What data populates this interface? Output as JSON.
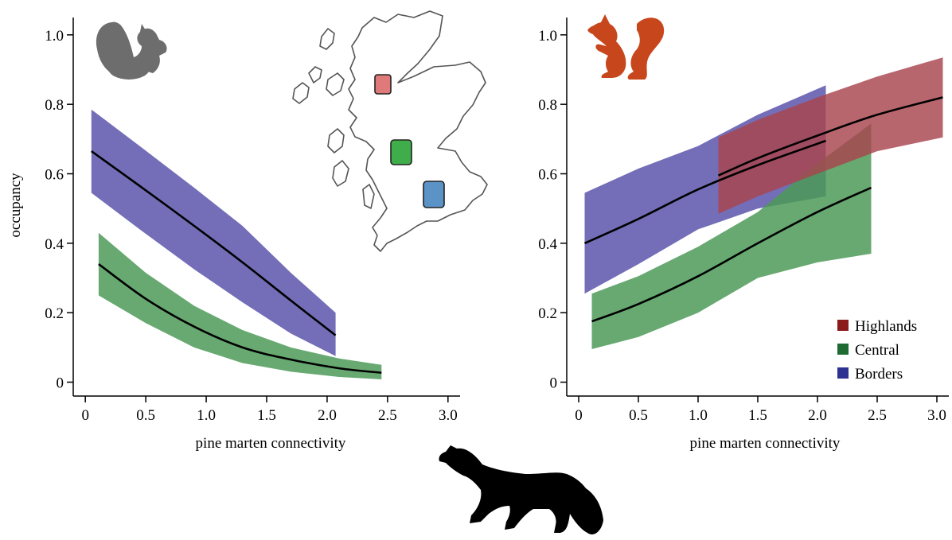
{
  "chart_data": [
    {
      "type": "line",
      "panel": "grey squirrel",
      "silhouette": "grey-squirrel-icon",
      "xlabel": "pine marten connectivity",
      "ylabel": "occupancy",
      "xlim": [
        -0.1,
        3.1
      ],
      "ylim": [
        -0.04,
        1.05
      ],
      "xticks": [
        "0",
        "0.5",
        "1.0",
        "1.5",
        "2.0",
        "2.5",
        "3.0"
      ],
      "yticks": [
        "0",
        "0.2",
        "0.4",
        "0.6",
        "0.8",
        "1.0"
      ],
      "series": [
        {
          "key": "borders",
          "x": [
            0.05,
            0.45,
            0.9,
            1.3,
            1.7,
            2.07
          ],
          "y": [
            0.665,
            0.565,
            0.45,
            0.345,
            0.235,
            0.135
          ],
          "lower": [
            0.545,
            0.44,
            0.325,
            0.23,
            0.14,
            0.075
          ],
          "upper": [
            0.785,
            0.68,
            0.56,
            0.45,
            0.315,
            0.2
          ]
        },
        {
          "key": "central",
          "x": [
            0.11,
            0.5,
            0.9,
            1.3,
            1.7,
            2.1,
            2.45
          ],
          "y": [
            0.34,
            0.24,
            0.16,
            0.1,
            0.065,
            0.04,
            0.027
          ],
          "lower": [
            0.25,
            0.17,
            0.1,
            0.055,
            0.03,
            0.015,
            0.008
          ],
          "upper": [
            0.43,
            0.315,
            0.22,
            0.15,
            0.1,
            0.068,
            0.05
          ]
        }
      ],
      "inset_map": {
        "regions": [
          {
            "key": "highlands",
            "color": "#e07a7a"
          },
          {
            "key": "central",
            "color": "#3fae4a"
          },
          {
            "key": "borders",
            "color": "#5c93c7"
          }
        ]
      }
    },
    {
      "type": "line",
      "panel": "red squirrel",
      "silhouette": "red-squirrel-icon",
      "xlabel": "pine marten connectivity",
      "ylabel": "",
      "xlim": [
        -0.1,
        3.1
      ],
      "ylim": [
        -0.04,
        1.05
      ],
      "xticks": [
        "0",
        "0.5",
        "1.0",
        "1.5",
        "2.0",
        "2.5",
        "3.0"
      ],
      "yticks": [
        "0",
        "0.2",
        "0.4",
        "0.6",
        "0.8",
        "1.0"
      ],
      "legend_position": "bottom-right",
      "series": [
        {
          "key": "borders",
          "name": "Borders",
          "color": "#2e3192",
          "band_color": "#5b55aa",
          "x": [
            0.05,
            0.5,
            1.0,
            1.5,
            2.07
          ],
          "y": [
            0.4,
            0.47,
            0.555,
            0.625,
            0.695
          ],
          "lower": [
            0.255,
            0.34,
            0.44,
            0.5,
            0.535
          ],
          "upper": [
            0.545,
            0.615,
            0.68,
            0.77,
            0.855
          ]
        },
        {
          "key": "central",
          "name": "Central",
          "color": "#1d6b32",
          "band_color": "#4c9a58",
          "x": [
            0.11,
            0.5,
            1.0,
            1.5,
            2.0,
            2.45
          ],
          "y": [
            0.175,
            0.225,
            0.305,
            0.4,
            0.49,
            0.56
          ],
          "lower": [
            0.095,
            0.13,
            0.2,
            0.3,
            0.345,
            0.37
          ],
          "upper": [
            0.255,
            0.305,
            0.39,
            0.49,
            0.63,
            0.745
          ]
        },
        {
          "key": "highlands",
          "name": "Highlands",
          "color": "#8b1a1a",
          "band_color": "#a8444e",
          "x": [
            1.17,
            1.5,
            2.0,
            2.5,
            3.05
          ],
          "y": [
            0.595,
            0.645,
            0.71,
            0.77,
            0.82
          ],
          "lower": [
            0.485,
            0.535,
            0.6,
            0.665,
            0.705
          ],
          "upper": [
            0.705,
            0.755,
            0.82,
            0.88,
            0.935
          ]
        }
      ]
    }
  ],
  "colors": {
    "axis": "#000000",
    "grey_squirrel": "#6d6d6d",
    "red_squirrel": "#c8461c",
    "pine_marten": "#000000"
  },
  "icons": [
    "grey-squirrel-icon",
    "red-squirrel-icon",
    "pine-marten-icon",
    "scotland-map-icon"
  ]
}
